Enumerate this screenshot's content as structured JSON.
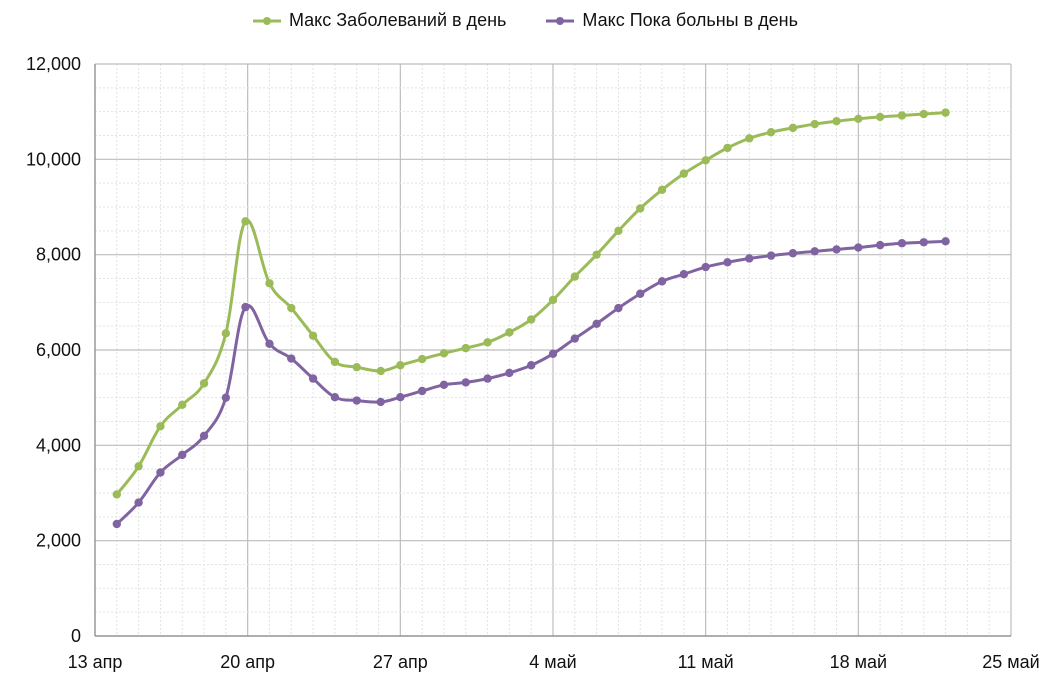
{
  "chart_data": {
    "type": "line",
    "title": "",
    "xlabel": "",
    "ylabel": "",
    "x_ticks": [
      "13 апр",
      "20 апр",
      "27 апр",
      "4 май",
      "11 май",
      "18 май",
      "25 май"
    ],
    "x_range_days": [
      0,
      42
    ],
    "ylim": [
      0,
      12000
    ],
    "y_ticks": [
      "0",
      "2,000",
      "4,000",
      "6,000",
      "8,000",
      "10,000",
      "12,000"
    ],
    "grid": true,
    "legend_position": "top",
    "series": [
      {
        "name": "Макс Заболеваний в день",
        "color": "#9BBB59",
        "points": [
          {
            "x": 1.0,
            "y": 2970
          },
          {
            "x": 2.0,
            "y": 3560
          },
          {
            "x": 3.0,
            "y": 4400
          },
          {
            "x": 4.0,
            "y": 4850
          },
          {
            "x": 5.0,
            "y": 5300
          },
          {
            "x": 6.0,
            "y": 6350
          },
          {
            "x": 6.9,
            "y": 8700
          },
          {
            "x": 8.0,
            "y": 7400
          },
          {
            "x": 9.0,
            "y": 6880
          },
          {
            "x": 10.0,
            "y": 6300
          },
          {
            "x": 11.0,
            "y": 5750
          },
          {
            "x": 12.0,
            "y": 5640
          },
          {
            "x": 13.1,
            "y": 5560
          },
          {
            "x": 14.0,
            "y": 5680
          },
          {
            "x": 15.0,
            "y": 5810
          },
          {
            "x": 16.0,
            "y": 5930
          },
          {
            "x": 17.0,
            "y": 6040
          },
          {
            "x": 18.0,
            "y": 6160
          },
          {
            "x": 19.0,
            "y": 6370
          },
          {
            "x": 20.0,
            "y": 6640
          },
          {
            "x": 21.0,
            "y": 7050
          },
          {
            "x": 22.0,
            "y": 7540
          },
          {
            "x": 23.0,
            "y": 8000
          },
          {
            "x": 24.0,
            "y": 8500
          },
          {
            "x": 25.0,
            "y": 8970
          },
          {
            "x": 26.0,
            "y": 9360
          },
          {
            "x": 27.0,
            "y": 9700
          },
          {
            "x": 28.0,
            "y": 9980
          },
          {
            "x": 29.0,
            "y": 10240
          },
          {
            "x": 30.0,
            "y": 10440
          },
          {
            "x": 31.0,
            "y": 10570
          },
          {
            "x": 32.0,
            "y": 10660
          },
          {
            "x": 33.0,
            "y": 10740
          },
          {
            "x": 34.0,
            "y": 10800
          },
          {
            "x": 35.0,
            "y": 10850
          },
          {
            "x": 36.0,
            "y": 10890
          },
          {
            "x": 37.0,
            "y": 10920
          },
          {
            "x": 38.0,
            "y": 10950
          },
          {
            "x": 39.0,
            "y": 10980
          }
        ]
      },
      {
        "name": "Макс Пока больны в день",
        "color": "#8064A2",
        "points": [
          {
            "x": 1.0,
            "y": 2350
          },
          {
            "x": 2.0,
            "y": 2800
          },
          {
            "x": 3.0,
            "y": 3430
          },
          {
            "x": 4.0,
            "y": 3800
          },
          {
            "x": 5.0,
            "y": 4200
          },
          {
            "x": 6.0,
            "y": 5000
          },
          {
            "x": 6.9,
            "y": 6900
          },
          {
            "x": 8.0,
            "y": 6130
          },
          {
            "x": 9.0,
            "y": 5820
          },
          {
            "x": 10.0,
            "y": 5400
          },
          {
            "x": 11.0,
            "y": 5010
          },
          {
            "x": 12.0,
            "y": 4940
          },
          {
            "x": 13.1,
            "y": 4910
          },
          {
            "x": 14.0,
            "y": 5010
          },
          {
            "x": 15.0,
            "y": 5140
          },
          {
            "x": 16.0,
            "y": 5270
          },
          {
            "x": 17.0,
            "y": 5320
          },
          {
            "x": 18.0,
            "y": 5400
          },
          {
            "x": 19.0,
            "y": 5520
          },
          {
            "x": 20.0,
            "y": 5680
          },
          {
            "x": 21.0,
            "y": 5920
          },
          {
            "x": 22.0,
            "y": 6240
          },
          {
            "x": 23.0,
            "y": 6550
          },
          {
            "x": 24.0,
            "y": 6880
          },
          {
            "x": 25.0,
            "y": 7180
          },
          {
            "x": 26.0,
            "y": 7440
          },
          {
            "x": 27.0,
            "y": 7590
          },
          {
            "x": 28.0,
            "y": 7740
          },
          {
            "x": 29.0,
            "y": 7840
          },
          {
            "x": 30.0,
            "y": 7920
          },
          {
            "x": 31.0,
            "y": 7980
          },
          {
            "x": 32.0,
            "y": 8030
          },
          {
            "x": 33.0,
            "y": 8070
          },
          {
            "x": 34.0,
            "y": 8110
          },
          {
            "x": 35.0,
            "y": 8150
          },
          {
            "x": 36.0,
            "y": 8200
          },
          {
            "x": 37.0,
            "y": 8240
          },
          {
            "x": 38.0,
            "y": 8260
          },
          {
            "x": 39.0,
            "y": 8280
          }
        ]
      }
    ]
  }
}
